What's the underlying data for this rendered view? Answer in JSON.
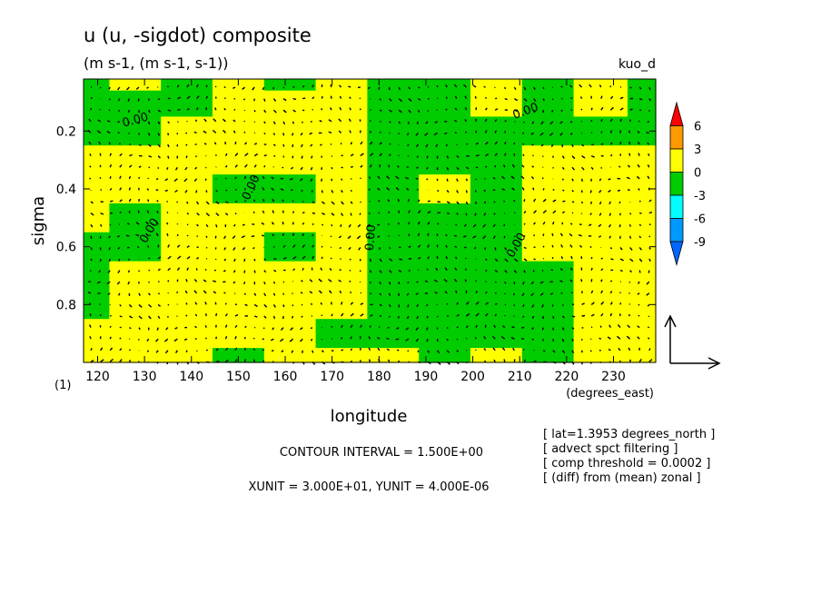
{
  "chart_data": {
    "type": "heatmap",
    "title": "u (u, -sigdot) composite",
    "subtitle": "(m s-1, (m s-1, s-1))",
    "run_label": "kuo_d",
    "xlabel": "longitude",
    "x_units": "(degrees_east)",
    "ylabel": "sigma",
    "y_units": "(1)",
    "xlim": [
      117,
      239
    ],
    "ylim": [
      1.0,
      0.02
    ],
    "x_ticks": [
      120,
      130,
      140,
      150,
      160,
      170,
      180,
      190,
      200,
      210,
      220,
      230
    ],
    "y_ticks": [
      0.2,
      0.4,
      0.6,
      0.8
    ],
    "contour_labels": [
      "0.00",
      "0.00",
      "0.00",
      "0.00",
      "0.00",
      "0.00"
    ],
    "colorbar": {
      "levels": [
        "6",
        "3",
        "0",
        "-3",
        "-6",
        "-9"
      ],
      "colors": [
        "#ff0000",
        "#ff9900",
        "#ffff00",
        "#00cc00",
        "#00ffff",
        "#0099ff",
        "#0066ff"
      ]
    },
    "shading": {
      "positive_color": "#ffff00",
      "negative_color": "#00cc00",
      "x": [
        117,
        128,
        139,
        150,
        161,
        172,
        183,
        194,
        205,
        216,
        227,
        239
      ],
      "y": [
        0.02,
        0.1,
        0.2,
        0.3,
        0.4,
        0.5,
        0.6,
        0.7,
        0.8,
        0.9,
        1.0
      ],
      "z": [
        [
          -1,
          1,
          -1,
          1,
          -1,
          1,
          -1,
          -1,
          1,
          -1,
          1,
          -1
        ],
        [
          -1,
          -1,
          -1,
          1,
          1,
          1,
          -1,
          -1,
          1,
          -1,
          1,
          -1
        ],
        [
          -1,
          -1,
          1,
          1,
          1,
          1,
          -1,
          -1,
          -1,
          -1,
          -1,
          -1
        ],
        [
          1,
          1,
          1,
          1,
          1,
          1,
          -1,
          -1,
          -1,
          1,
          1,
          1
        ],
        [
          1,
          1,
          1,
          -1,
          -1,
          1,
          -1,
          1,
          -1,
          1,
          1,
          1
        ],
        [
          1,
          -1,
          1,
          1,
          1,
          1,
          -1,
          -1,
          -1,
          1,
          1,
          1
        ],
        [
          -1,
          -1,
          1,
          1,
          -1,
          1,
          -1,
          -1,
          -1,
          1,
          1,
          1
        ],
        [
          -1,
          1,
          1,
          1,
          1,
          1,
          -1,
          -1,
          -1,
          -1,
          1,
          1
        ],
        [
          -1,
          1,
          1,
          1,
          1,
          1,
          -1,
          -1,
          -1,
          -1,
          1,
          1
        ],
        [
          1,
          1,
          1,
          1,
          1,
          -1,
          -1,
          -1,
          -1,
          -1,
          1,
          1
        ],
        [
          1,
          1,
          1,
          -1,
          1,
          1,
          1,
          -1,
          1,
          -1,
          1,
          1
        ]
      ]
    },
    "vector_key_label": "",
    "info": [
      "[ lat=1.3953 degrees_north ]",
      "[ advect spct filtering ]",
      "[ comp threshold = 0.0002 ]",
      "[ (diff) from (mean) zonal ]"
    ],
    "contour_interval": "CONTOUR INTERVAL = 1.500E+00",
    "units_text": "XUNIT = 3.000E+01, YUNIT = 4.000E-06"
  }
}
